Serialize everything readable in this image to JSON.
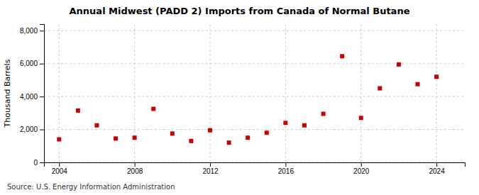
{
  "chart_data": {
    "type": "scatter",
    "title": "Annual Midwest (PADD 2) Imports from Canada of Normal Butane",
    "ylabel": "Thousand Barrels",
    "annotations": [
      "Source: U.S. Energy Information Administration"
    ],
    "x": [
      2004,
      2005,
      2006,
      2007,
      2008,
      2009,
      2010,
      2011,
      2012,
      2013,
      2014,
      2015,
      2016,
      2017,
      2018,
      2019,
      2020,
      2021,
      2022,
      2023,
      2024
    ],
    "values": [
      1400,
      3150,
      2250,
      1450,
      1500,
      3250,
      1750,
      1300,
      1950,
      1200,
      1500,
      1800,
      2400,
      2250,
      2950,
      6450,
      2700,
      4500,
      5950,
      4750,
      5200
    ],
    "color": "#cc0000",
    "marker": "square",
    "xlim": [
      2003.2,
      2025.5
    ],
    "ylim": [
      0,
      8400
    ],
    "xticks": [
      2004,
      2008,
      2012,
      2016,
      2020,
      2024
    ],
    "yticks": [
      0,
      {
        "value": 2000,
        "label": "2,000"
      },
      {
        "value": 4000,
        "label": "4,000"
      },
      {
        "value": 6000,
        "label": "6,000"
      },
      {
        "value": 8000,
        "label": "8,000"
      }
    ],
    "grid": true
  }
}
